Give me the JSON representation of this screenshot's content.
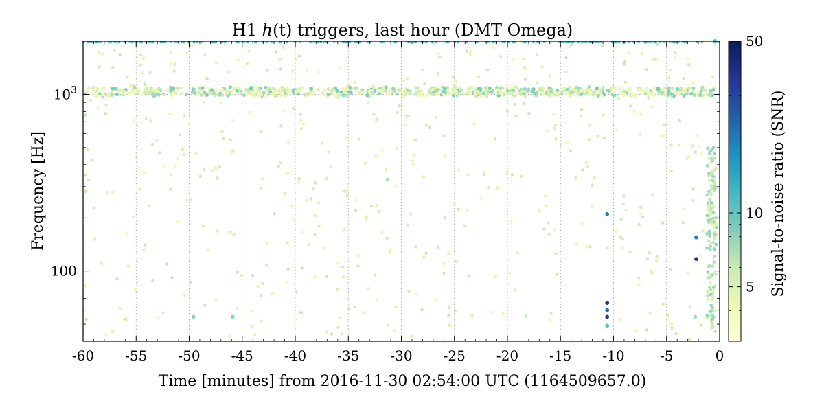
{
  "chart_data": {
    "type": "scatter",
    "title": "H1 h(t) triggers, last hour (DMT Omega)",
    "title_parts": {
      "prefix": "H1 ",
      "h": "h",
      "paren_t": "(t)",
      "suffix": " triggers, last hour (DMT Omega)"
    },
    "xlabel": "Time [minutes] from 2016-11-30 02:54:00 UTC (1164509657.0)",
    "ylabel": "Frequency [Hz]",
    "xlim": [
      -60,
      0
    ],
    "ylim": [
      40,
      2000
    ],
    "yscale": "log",
    "grid": true,
    "x_ticks": [
      {
        "value": -60,
        "label": "-60"
      },
      {
        "value": -55,
        "label": "-55"
      },
      {
        "value": -50,
        "label": "-50"
      },
      {
        "value": -45,
        "label": "-45"
      },
      {
        "value": -40,
        "label": "-40"
      },
      {
        "value": -35,
        "label": "-35"
      },
      {
        "value": -30,
        "label": "-30"
      },
      {
        "value": -25,
        "label": "-25"
      },
      {
        "value": -20,
        "label": "-20"
      },
      {
        "value": -15,
        "label": "-15"
      },
      {
        "value": -10,
        "label": "-10"
      },
      {
        "value": -5,
        "label": "-5"
      },
      {
        "value": 0,
        "label": "0"
      }
    ],
    "y_ticks": [
      {
        "value": 100,
        "label": "100"
      },
      {
        "value": 1000,
        "label": "10",
        "exponent": "3"
      }
    ],
    "colorbar": {
      "label": "Signal-to-noise ratio (SNR)",
      "scale": "log",
      "range": [
        3,
        50
      ],
      "ticks": [
        {
          "value": 5,
          "label": "5"
        },
        {
          "value": 10,
          "label": "10"
        },
        {
          "value": 50,
          "label": "50"
        }
      ],
      "colormap": [
        "#ffffd9",
        "#edf8b1",
        "#c7e9b4",
        "#7fcdbb",
        "#41b6c4",
        "#1d91c0",
        "#225ea8",
        "#253494",
        "#081d58"
      ]
    },
    "band_triggers": [
      {
        "f_min": 980,
        "f_max": 1100,
        "snr_min": 4,
        "snr_max": 9,
        "t_min": -60,
        "t_max": -0.5
      }
    ],
    "points": [
      {
        "x": -10.6,
        "y": 210,
        "snr": 20
      },
      {
        "x": -10.6,
        "y": 66,
        "snr": 35
      },
      {
        "x": -10.6,
        "y": 60,
        "snr": 22
      },
      {
        "x": -10.6,
        "y": 55,
        "snr": 35
      },
      {
        "x": -10.6,
        "y": 49,
        "snr": 10
      },
      {
        "x": -2.2,
        "y": 155,
        "snr": 20
      },
      {
        "x": -2.2,
        "y": 117,
        "snr": 35
      },
      {
        "x": -0.45,
        "y": 2000,
        "snr": 12
      },
      {
        "x": -49.6,
        "y": 55,
        "snr": 8
      },
      {
        "x": -45.9,
        "y": 55,
        "snr": 8
      },
      {
        "x": -31.3,
        "y": 330,
        "snr": 7
      },
      {
        "x": -2.3,
        "y": 55,
        "snr": 7
      },
      {
        "x": -0.5,
        "y": 300,
        "snr": 7
      },
      {
        "x": -0.7,
        "y": 62,
        "snr": 7
      },
      {
        "x": -0.7,
        "y": 56,
        "snr": 7
      },
      {
        "x": -0.7,
        "y": 48,
        "snr": 6
      },
      {
        "x": -57.2,
        "y": 1080,
        "snr": 9
      },
      {
        "x": -51.5,
        "y": 1080,
        "snr": 9
      },
      {
        "x": -44.2,
        "y": 1080,
        "snr": 9
      },
      {
        "x": -38.5,
        "y": 1080,
        "snr": 9
      },
      {
        "x": -25.9,
        "y": 1080,
        "snr": 9
      },
      {
        "x": -11.6,
        "y": 1080,
        "snr": 9
      },
      {
        "x": -5.8,
        "y": 1080,
        "snr": 9
      }
    ],
    "background_triggers": {
      "count": 480,
      "f_min": 40,
      "f_max": 2000,
      "snr_min": 4,
      "snr_max": 6
    }
  }
}
